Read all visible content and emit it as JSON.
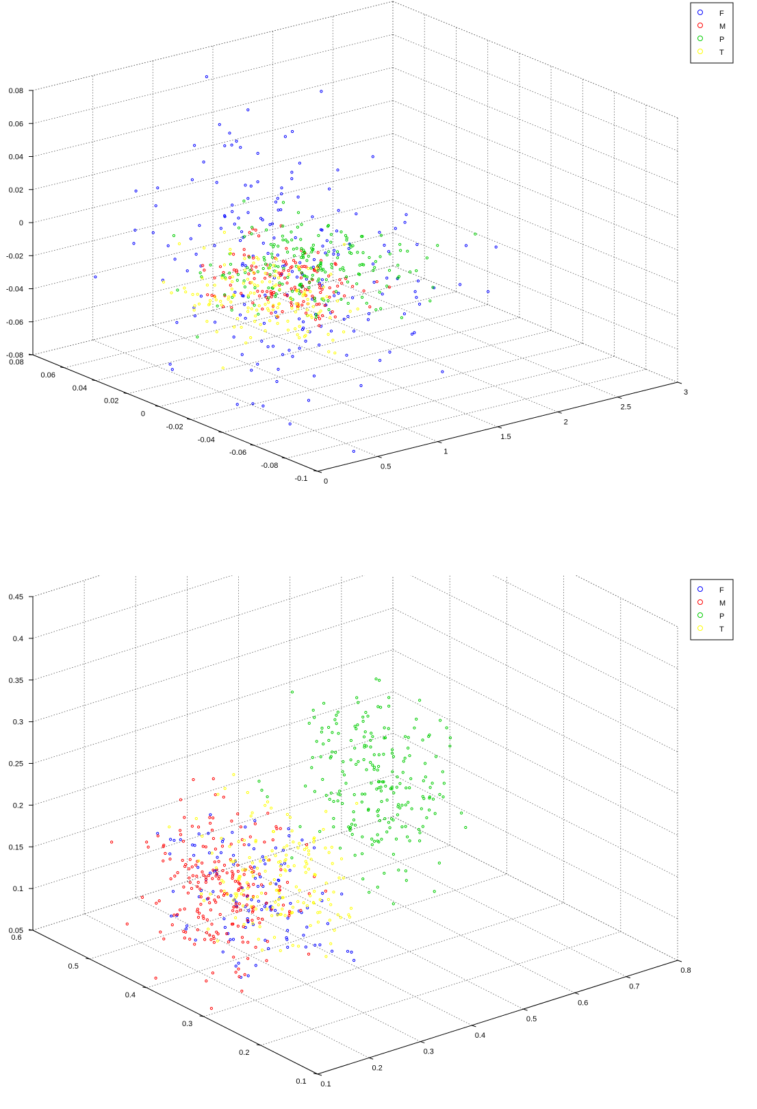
{
  "chart_data": [
    {
      "type": "scatter",
      "title": "",
      "xlabel": "",
      "ylabel": "",
      "zlabel": "",
      "xlim": [
        0,
        3
      ],
      "ylim": [
        -0.1,
        0.08
      ],
      "zlim": [
        -0.08,
        0.08
      ],
      "grid": true,
      "legend_position": "top-right",
      "x_ticks": [
        "0",
        "0.5",
        "1",
        "1.5",
        "2",
        "2.5",
        "3"
      ],
      "y_ticks": [
        "-0.1",
        "-0.08",
        "-0.06",
        "-0.04",
        "-0.02",
        "0",
        "0.02",
        "0.04",
        "0.06",
        "0.08"
      ],
      "z_ticks": [
        "-0.08",
        "-0.06",
        "-0.04",
        "-0.02",
        "0",
        "0.02",
        "0.04",
        "0.06",
        "0.08"
      ],
      "series": [
        {
          "name": "F",
          "color": "#0000ff",
          "cluster": {
            "x": [
              0.2,
              1.6
            ],
            "y": [
              -0.09,
              0.07
            ],
            "z": [
              -0.08,
              0.07
            ]
          },
          "count": 190
        },
        {
          "name": "M",
          "color": "#ff0000",
          "cluster": {
            "x": [
              0.6,
              1.4
            ],
            "y": [
              -0.04,
              0.03
            ],
            "z": [
              -0.04,
              0.0
            ]
          },
          "count": 140
        },
        {
          "name": "P",
          "color": "#00cc00",
          "cluster": {
            "x": [
              0.6,
              1.8
            ],
            "y": [
              -0.04,
              0.03
            ],
            "z": [
              -0.04,
              0.01
            ]
          },
          "count": 200
        },
        {
          "name": "T",
          "color": "#ffff00",
          "cluster": {
            "x": [
              0.4,
              1.2
            ],
            "y": [
              -0.05,
              0.03
            ],
            "z": [
              -0.05,
              0.0
            ]
          },
          "count": 140
        }
      ]
    },
    {
      "type": "scatter",
      "title": "",
      "xlabel": "",
      "ylabel": "",
      "zlabel": "",
      "xlim": [
        0.1,
        0.8
      ],
      "ylim": [
        0.1,
        0.6
      ],
      "zlim": [
        0.05,
        0.45
      ],
      "grid": true,
      "legend_position": "top-right",
      "x_ticks": [
        "0.1",
        "0.2",
        "0.3",
        "0.4",
        "0.5",
        "0.6",
        "0.7",
        "0.8"
      ],
      "y_ticks": [
        "0.1",
        "0.2",
        "0.3",
        "0.4",
        "0.5",
        "0.6"
      ],
      "z_ticks": [
        "0.05",
        "0.1",
        "0.15",
        "0.2",
        "0.25",
        "0.3",
        "0.35",
        "0.4",
        "0.45"
      ],
      "series": [
        {
          "name": "F",
          "color": "#0000ff",
          "cluster": {
            "x": [
              0.2,
              0.4
            ],
            "y": [
              0.3,
              0.5
            ],
            "z": [
              0.05,
              0.2
            ]
          },
          "count": 120
        },
        {
          "name": "M",
          "color": "#ff0000",
          "cluster": {
            "x": [
              0.15,
              0.35
            ],
            "y": [
              0.3,
              0.5
            ],
            "z": [
              0.05,
              0.22
            ]
          },
          "count": 220
        },
        {
          "name": "P",
          "color": "#00cc00",
          "cluster": {
            "x": [
              0.45,
              0.65
            ],
            "y": [
              0.3,
              0.5
            ],
            "z": [
              0.1,
              0.32
            ]
          },
          "count": 220
        },
        {
          "name": "T",
          "color": "#ffff00",
          "cluster": {
            "x": [
              0.25,
              0.45
            ],
            "y": [
              0.3,
              0.5
            ],
            "z": [
              0.05,
              0.2
            ]
          },
          "count": 170
        }
      ]
    }
  ]
}
